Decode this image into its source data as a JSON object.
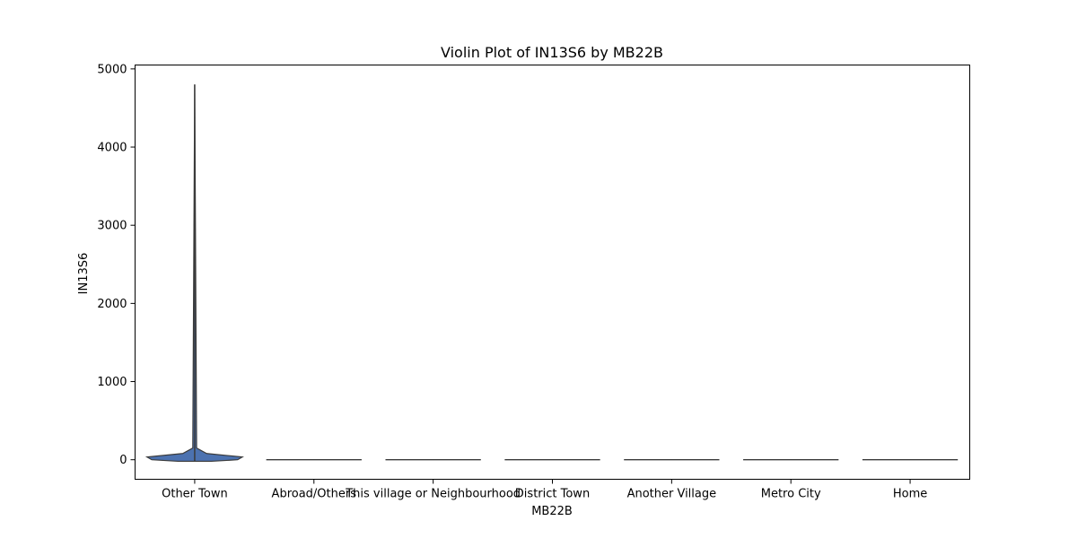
{
  "chart_data": {
    "type": "violin",
    "title": "Violin Plot of IN13S6 by MB22B",
    "xlabel": "MB22B",
    "ylabel": "IN13S6",
    "categories": [
      "Other Town",
      "Abroad/Others",
      "This village or Neighbourhood",
      "District Town",
      "Another Village",
      "Metro City",
      "Home"
    ],
    "ylim": [
      -250,
      5050
    ],
    "yticks": [
      0,
      1000,
      2000,
      3000,
      4000,
      5000
    ],
    "grid": false,
    "legend": "none",
    "violin_color": "#4c72b0",
    "violins": [
      {
        "category": "Other Town",
        "min": -20,
        "max": 4800,
        "mode": 35,
        "density": [
          [
            -20,
            0.35
          ],
          [
            0,
            0.9
          ],
          [
            35,
            1.0
          ],
          [
            80,
            0.25
          ],
          [
            150,
            0.04
          ],
          [
            4800,
            0.0
          ]
        ]
      },
      {
        "category": "Abroad/Others",
        "min": 0,
        "max": 0,
        "mode": 0,
        "density": [
          [
            0,
            1.0
          ]
        ]
      },
      {
        "category": "This village or Neighbourhood",
        "min": 0,
        "max": 0,
        "mode": 0,
        "density": [
          [
            0,
            1.0
          ]
        ]
      },
      {
        "category": "District Town",
        "min": 0,
        "max": 0,
        "mode": 0,
        "density": [
          [
            0,
            1.0
          ]
        ]
      },
      {
        "category": "Another Village",
        "min": 0,
        "max": 0,
        "mode": 0,
        "density": [
          [
            0,
            1.0
          ]
        ]
      },
      {
        "category": "Metro City",
        "min": 0,
        "max": 0,
        "mode": 0,
        "density": [
          [
            0,
            1.0
          ]
        ]
      },
      {
        "category": "Home",
        "min": 0,
        "max": 0,
        "mode": 0,
        "density": [
          [
            0,
            1.0
          ]
        ]
      }
    ]
  }
}
